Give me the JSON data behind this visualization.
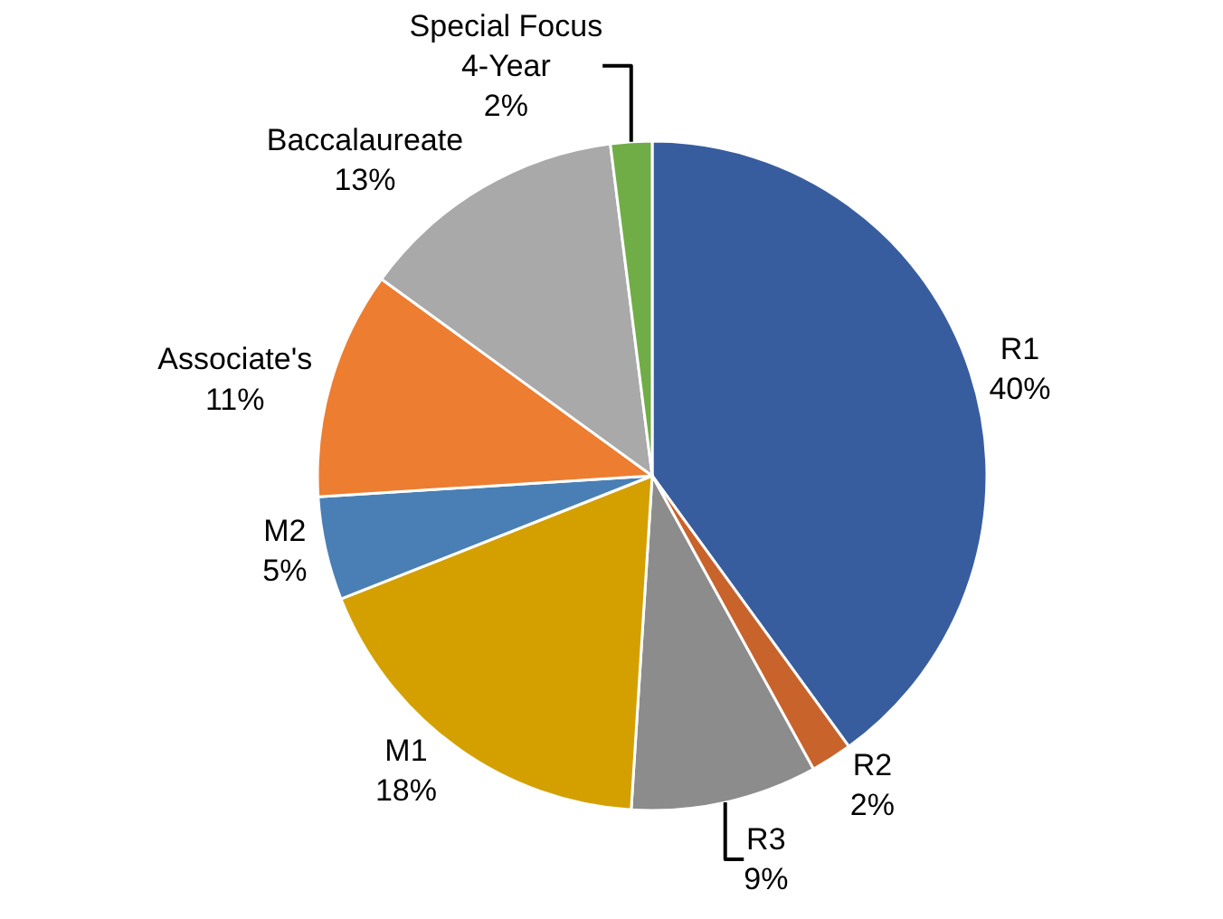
{
  "chart_data": {
    "type": "pie",
    "categories": [
      "R1",
      "R2",
      "R3",
      "M1",
      "M2",
      "Associate's",
      "Baccalaureate",
      "Special Focus 4-Year"
    ],
    "values": [
      40,
      2,
      9,
      18,
      5,
      11,
      13,
      2
    ],
    "value_labels": [
      "40%",
      "2%",
      "9%",
      "18%",
      "5%",
      "11%",
      "13%",
      "2%"
    ],
    "colors": [
      "#385d9f",
      "#c8632c",
      "#8c8c8c",
      "#d4a000",
      "#4a7fb5",
      "#ed7d31",
      "#a9a9a9",
      "#70ad47"
    ],
    "legend": false
  }
}
